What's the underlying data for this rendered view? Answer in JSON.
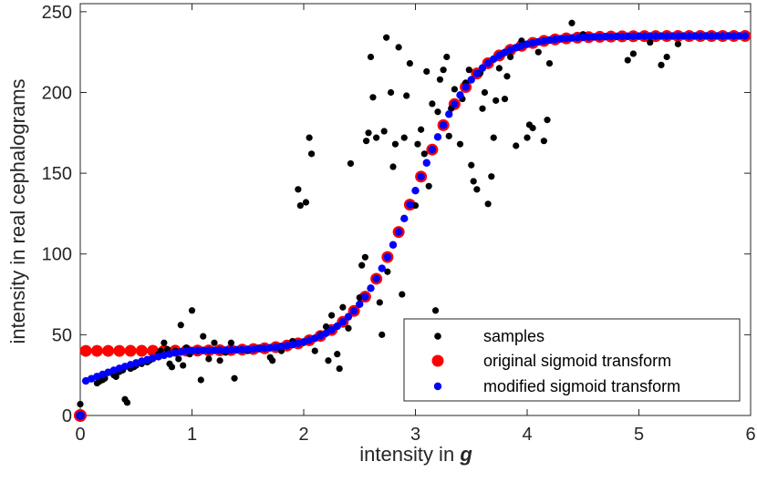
{
  "chart_data": {
    "type": "scatter",
    "xlabel": "intensity in",
    "xlabel_symbol": "g",
    "ylabel": "intensity in real cephalograms",
    "xlim": [
      0,
      6
    ],
    "ylim": [
      0,
      255
    ],
    "xticks": [
      0,
      1,
      2,
      3,
      4,
      5,
      6
    ],
    "yticks": [
      0,
      50,
      100,
      150,
      200,
      250
    ],
    "xtick_labels": [
      "0",
      "1",
      "2",
      "3",
      "4",
      "5",
      "6"
    ],
    "ytick_labels": [
      "0",
      "50",
      "100",
      "150",
      "200",
      "250"
    ],
    "grid": false,
    "legend_position": "bottom-right",
    "series": [
      {
        "name": "samples",
        "color": "#000000",
        "marker": "dot-small",
        "points": [
          [
            0.0,
            0
          ],
          [
            0.0,
            7
          ],
          [
            0.15,
            20
          ],
          [
            0.17,
            21
          ],
          [
            0.2,
            22
          ],
          [
            0.22,
            23
          ],
          [
            0.3,
            25
          ],
          [
            0.32,
            24
          ],
          [
            0.35,
            27
          ],
          [
            0.38,
            28
          ],
          [
            0.4,
            10
          ],
          [
            0.42,
            8
          ],
          [
            0.45,
            29
          ],
          [
            0.48,
            30
          ],
          [
            0.5,
            31
          ],
          [
            0.55,
            32
          ],
          [
            0.6,
            33
          ],
          [
            0.62,
            34
          ],
          [
            0.65,
            35
          ],
          [
            0.7,
            38
          ],
          [
            0.72,
            40
          ],
          [
            0.75,
            45
          ],
          [
            0.78,
            41
          ],
          [
            0.8,
            32
          ],
          [
            0.82,
            30
          ],
          [
            0.85,
            40
          ],
          [
            0.88,
            35
          ],
          [
            0.9,
            56
          ],
          [
            0.92,
            31
          ],
          [
            0.95,
            42
          ],
          [
            0.98,
            38
          ],
          [
            1.0,
            65
          ],
          [
            1.05,
            40
          ],
          [
            1.08,
            22
          ],
          [
            1.1,
            49
          ],
          [
            1.15,
            35
          ],
          [
            1.2,
            45
          ],
          [
            1.25,
            34
          ],
          [
            1.3,
            39
          ],
          [
            1.35,
            45
          ],
          [
            1.38,
            23
          ],
          [
            1.4,
            41
          ],
          [
            1.5,
            40
          ],
          [
            1.6,
            42
          ],
          [
            1.7,
            36
          ],
          [
            1.72,
            34
          ],
          [
            1.8,
            40
          ],
          [
            1.9,
            46
          ],
          [
            1.95,
            140
          ],
          [
            1.97,
            130
          ],
          [
            2.0,
            45
          ],
          [
            2.02,
            132
          ],
          [
            2.05,
            172
          ],
          [
            2.07,
            162
          ],
          [
            2.1,
            40
          ],
          [
            2.15,
            50
          ],
          [
            2.2,
            55
          ],
          [
            2.22,
            34
          ],
          [
            2.25,
            62
          ],
          [
            2.3,
            38
          ],
          [
            2.32,
            29
          ],
          [
            2.35,
            67
          ],
          [
            2.4,
            54
          ],
          [
            2.42,
            156
          ],
          [
            2.5,
            73
          ],
          [
            2.52,
            93
          ],
          [
            2.55,
            98
          ],
          [
            2.56,
            170
          ],
          [
            2.58,
            175
          ],
          [
            2.6,
            222
          ],
          [
            2.62,
            197
          ],
          [
            2.65,
            172
          ],
          [
            2.68,
            70
          ],
          [
            2.7,
            50
          ],
          [
            2.72,
            176
          ],
          [
            2.74,
            234
          ],
          [
            2.75,
            89
          ],
          [
            2.78,
            200
          ],
          [
            2.8,
            154
          ],
          [
            2.82,
            168
          ],
          [
            2.85,
            228
          ],
          [
            2.88,
            75
          ],
          [
            2.9,
            172
          ],
          [
            2.92,
            198
          ],
          [
            2.95,
            218
          ],
          [
            3.0,
            130
          ],
          [
            3.02,
            168
          ],
          [
            3.05,
            177
          ],
          [
            3.08,
            162
          ],
          [
            3.1,
            213
          ],
          [
            3.12,
            142
          ],
          [
            3.15,
            193
          ],
          [
            3.18,
            65
          ],
          [
            3.2,
            188
          ],
          [
            3.22,
            208
          ],
          [
            3.25,
            214
          ],
          [
            3.28,
            222
          ],
          [
            3.3,
            173
          ],
          [
            3.32,
            190
          ],
          [
            3.35,
            202
          ],
          [
            3.4,
            168
          ],
          [
            3.42,
            196
          ],
          [
            3.45,
            206
          ],
          [
            3.48,
            214
          ],
          [
            3.5,
            155
          ],
          [
            3.52,
            145
          ],
          [
            3.55,
            140
          ],
          [
            3.58,
            212
          ],
          [
            3.6,
            190
          ],
          [
            3.62,
            200
          ],
          [
            3.65,
            131
          ],
          [
            3.68,
            148
          ],
          [
            3.7,
            172
          ],
          [
            3.72,
            195
          ],
          [
            3.75,
            215
          ],
          [
            3.78,
            224
          ],
          [
            3.8,
            196
          ],
          [
            3.82,
            210
          ],
          [
            3.85,
            222
          ],
          [
            3.9,
            167
          ],
          [
            3.92,
            228
          ],
          [
            3.95,
            232
          ],
          [
            4.0,
            172
          ],
          [
            4.02,
            180
          ],
          [
            4.05,
            178
          ],
          [
            4.1,
            225
          ],
          [
            4.15,
            170
          ],
          [
            4.18,
            183
          ],
          [
            4.2,
            218
          ],
          [
            4.25,
            233
          ],
          [
            4.4,
            243
          ],
          [
            4.5,
            236
          ],
          [
            4.9,
            220
          ],
          [
            4.95,
            224
          ],
          [
            5.1,
            231
          ],
          [
            5.2,
            217
          ],
          [
            5.25,
            222
          ],
          [
            5.35,
            230
          ]
        ]
      },
      {
        "name": "original sigmoid transform",
        "color": "#ff0000",
        "marker": "dot-large",
        "model": {
          "low": 40,
          "high": 235,
          "center": 2.99,
          "width": 0.28
        },
        "x_start": 0.05,
        "x_end": 5.95,
        "n_points": 60
      },
      {
        "name": "modified sigmoid transform",
        "color": "#0000ff",
        "marker": "dot-medium",
        "model": {
          "low": 40,
          "high": 235,
          "center": 2.99,
          "width": 0.28,
          "ramp_start": 20,
          "ramp_end_x": 1.0
        },
        "x_start": 0.0,
        "x_end": 5.95,
        "n_points": 120
      }
    ]
  }
}
